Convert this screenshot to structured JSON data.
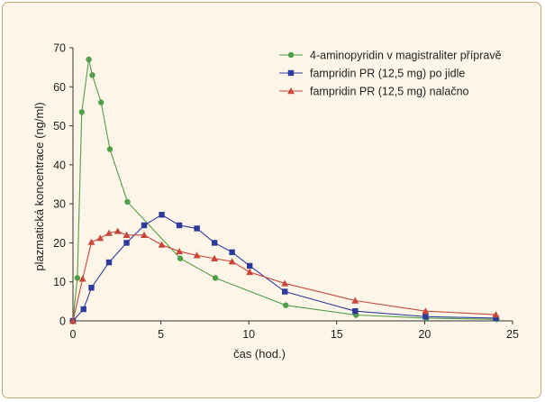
{
  "chart_data": {
    "type": "line",
    "xlabel": "čas (hod.)",
    "ylabel": "plazmatická koncentrace (ng/ml)",
    "xlim": [
      0,
      25
    ],
    "ylim": [
      0,
      70
    ],
    "xticks": [
      0,
      5,
      10,
      15,
      20,
      25
    ],
    "yticks": [
      0,
      10,
      20,
      30,
      40,
      50,
      60,
      70
    ],
    "grid": false,
    "legend_position": "top-right",
    "series": [
      {
        "name": "4-aminopyridin v magistraliter přípravě",
        "color": "#4f9e48",
        "marker": "circle",
        "x": [
          0,
          0.25,
          0.5,
          0.9,
          1.1,
          1.6,
          2.1,
          3.1,
          6.1,
          8.1,
          12.1,
          16.1,
          20.1,
          24.1
        ],
        "y": [
          0,
          11,
          53.5,
          67,
          63,
          56,
          44,
          30.5,
          16,
          11,
          4,
          1.5,
          0.7,
          0.4
        ]
      },
      {
        "name": "fampridin PR (12,5 mg) po jidle",
        "color": "#2e3a9b",
        "marker": "square",
        "x": [
          0,
          0.6,
          1.05,
          2.05,
          3.05,
          4.05,
          5.05,
          6.05,
          7.05,
          8.05,
          9.05,
          10.05,
          12.05,
          16.05,
          20.05,
          24.05
        ],
        "y": [
          0,
          3,
          8.5,
          15,
          20,
          24.5,
          27.2,
          24.5,
          23.7,
          20,
          17.6,
          14.1,
          7.5,
          2.5,
          1.1,
          0.7
        ]
      },
      {
        "name": "fampridin PR (12,5 mg) nalačno",
        "color": "#c8473a",
        "marker": "triangle",
        "x": [
          0,
          0.55,
          1.05,
          1.55,
          2.05,
          2.55,
          3.05,
          4.05,
          5.05,
          6.05,
          7.05,
          8.05,
          9.05,
          10.05,
          12.05,
          16.05,
          20.05,
          24.05
        ],
        "y": [
          0,
          10.8,
          20.2,
          21.2,
          22.5,
          23,
          22,
          22,
          19.5,
          17.8,
          16.8,
          16,
          15.2,
          12.5,
          9.6,
          5.2,
          2.5,
          1.6
        ]
      }
    ]
  }
}
